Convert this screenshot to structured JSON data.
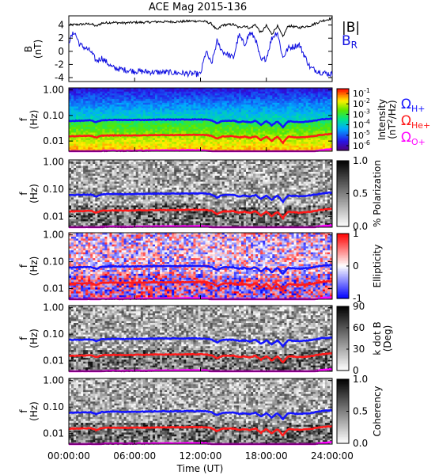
{
  "title": "ACE Mag 2015-136",
  "time_axis": {
    "label": "Time (UT)",
    "ticks": [
      "00:00:00",
      "06:00:00",
      "12:00:00",
      "18:00:00",
      "24:00:00"
    ]
  },
  "colors": {
    "B_total": "#000000",
    "B_R": "#1010e0",
    "omega_H": "#1414ff",
    "omega_He": "#ff1a1a",
    "omega_O": "#ff00ff"
  },
  "legends": {
    "b_total": "|B|",
    "b_r": "BR",
    "omega_h": "ΩH+",
    "omega_he": "ΩHe+",
    "omega_o": "ΩO+"
  },
  "panels": {
    "b": {
      "ylabel": "B\n(nT)",
      "ticks": [
        "4",
        "2",
        "0",
        "-2",
        "-4"
      ]
    },
    "freq_ylabel": "f\n(Hz)",
    "freq_ticks": [
      "1.00",
      "0.10",
      "0.01"
    ],
    "spectrogram": {
      "colorbar_label": "Intensity\n(nT²/Hz)",
      "colorbar_ticks": [
        "10^-1",
        "10^-2",
        "10^-3",
        "10^-4",
        "10^-5",
        "10^-6"
      ]
    },
    "polarization": {
      "colorbar_label": "% Polarization",
      "colorbar_ticks": [
        "1.0",
        "0.5",
        "0.0"
      ]
    },
    "ellipticity": {
      "colorbar_label": "Ellipticity",
      "colorbar_ticks": [
        "1",
        "0",
        "-1"
      ]
    },
    "kdotb": {
      "colorbar_label": "k dot B\n(Deg)",
      "colorbar_ticks": [
        "90",
        "60",
        "30",
        "0"
      ]
    },
    "coherency": {
      "colorbar_label": "Coherency",
      "colorbar_ticks": [
        "1.0",
        "0.5",
        "0.0"
      ]
    }
  },
  "chart_data": {
    "type": "line",
    "title": "ACE Mag 2015-136",
    "xlabel": "Time (UT)",
    "x_unit": "hours",
    "xlim": [
      0,
      24
    ],
    "b_panel": {
      "ylabel": "B (nT)",
      "ylim": [
        -4.6,
        5.4
      ],
      "series": [
        {
          "name": "|B|",
          "x": [
            0,
            1,
            2,
            2.5,
            3,
            4,
            5,
            6,
            7,
            8,
            9,
            10,
            11,
            12,
            12.5,
            13,
            13.5,
            14,
            15,
            15.5,
            16,
            16.5,
            17,
            17.5,
            18,
            18.5,
            19,
            19.5,
            20,
            21,
            22,
            23,
            24
          ],
          "y": [
            4.0,
            4.1,
            4.2,
            3.8,
            4.3,
            4.4,
            4.3,
            4.4,
            4.4,
            4.5,
            4.5,
            4.5,
            4.6,
            4.6,
            4.5,
            4.2,
            3.2,
            4.0,
            4.1,
            3.6,
            3.9,
            3.5,
            4.1,
            2.8,
            3.9,
            2.6,
            3.9,
            2.2,
            3.9,
            3.6,
            3.9,
            4.6,
            5.0
          ]
        },
        {
          "name": "BR",
          "x": [
            0,
            0.5,
            1,
            2,
            2.5,
            3,
            4,
            5,
            6,
            7,
            8,
            9,
            10,
            11,
            12,
            12.5,
            13,
            13.5,
            14,
            15,
            15.5,
            16,
            16.5,
            17,
            17.5,
            18,
            18.5,
            19,
            19.5,
            20,
            21,
            22,
            23,
            24
          ],
          "y": [
            1.5,
            3.0,
            1.0,
            0.0,
            -1.5,
            -1.0,
            -2.5,
            -2.8,
            -3.0,
            -3.1,
            -3.2,
            -3.2,
            -3.3,
            -3.4,
            -3.5,
            0.0,
            -2.0,
            1.5,
            0.0,
            -1.0,
            2.5,
            1.0,
            2.8,
            2.0,
            -1.5,
            -1.0,
            2.0,
            3.0,
            -1.0,
            0.5,
            1.0,
            -2.5,
            -3.2,
            -3.5
          ]
        }
      ]
    },
    "frequency_panels": {
      "ylabel": "f (Hz)",
      "yscale": "log",
      "ylim": [
        0.004,
        1.2
      ],
      "series": [
        {
          "name": "ΩH+",
          "x": [
            0,
            1,
            2,
            2.5,
            3,
            4,
            5,
            6,
            7,
            8,
            9,
            10,
            11,
            12,
            12.5,
            13,
            13.5,
            14,
            15,
            15.5,
            16,
            16.5,
            17,
            17.5,
            18,
            18.5,
            19,
            19.5,
            20,
            21,
            22,
            23,
            24
          ],
          "y": [
            0.061,
            0.062,
            0.064,
            0.054,
            0.065,
            0.067,
            0.066,
            0.067,
            0.067,
            0.069,
            0.069,
            0.069,
            0.07,
            0.07,
            0.069,
            0.064,
            0.049,
            0.061,
            0.062,
            0.055,
            0.059,
            0.053,
            0.062,
            0.043,
            0.059,
            0.04,
            0.059,
            0.034,
            0.059,
            0.055,
            0.059,
            0.07,
            0.076
          ]
        },
        {
          "name": "ΩHe+",
          "x": [
            0,
            1,
            2,
            2.5,
            3,
            4,
            5,
            6,
            7,
            8,
            9,
            10,
            11,
            12,
            12.5,
            13,
            13.5,
            14,
            15,
            15.5,
            16,
            16.5,
            17,
            17.5,
            18,
            18.5,
            19,
            19.5,
            20,
            21,
            22,
            23,
            24
          ],
          "y": [
            0.0152,
            0.0156,
            0.016,
            0.0135,
            0.0162,
            0.0167,
            0.0164,
            0.0167,
            0.0167,
            0.0172,
            0.0172,
            0.0172,
            0.0175,
            0.0175,
            0.0172,
            0.016,
            0.0122,
            0.0152,
            0.0156,
            0.0137,
            0.0148,
            0.0133,
            0.0156,
            0.0107,
            0.0148,
            0.0099,
            0.0148,
            0.0084,
            0.0148,
            0.0137,
            0.0148,
            0.0175,
            0.019
          ]
        },
        {
          "name": "ΩO+",
          "x": [
            0,
            1,
            2,
            2.5,
            3,
            4,
            5,
            6,
            7,
            8,
            9,
            10,
            11,
            12,
            12.5,
            13,
            13.5,
            14,
            15,
            15.5,
            16,
            16.5,
            17,
            17.5,
            18,
            18.5,
            19,
            19.5,
            20,
            21,
            22,
            23,
            24
          ],
          "y": [
            0.0038,
            0.0039,
            0.004,
            0.0034,
            0.0041,
            0.0042,
            0.0041,
            0.0042,
            0.0042,
            0.0043,
            0.0043,
            0.0043,
            0.0044,
            0.0044,
            0.0043,
            0.004,
            0.0031,
            0.0038,
            0.0039,
            0.0034,
            0.0037,
            0.0033,
            0.0039,
            0.0027,
            0.0037,
            0.0025,
            0.0037,
            0.0021,
            0.0037,
            0.0034,
            0.0037,
            0.0044,
            0.0048
          ]
        }
      ]
    }
  }
}
